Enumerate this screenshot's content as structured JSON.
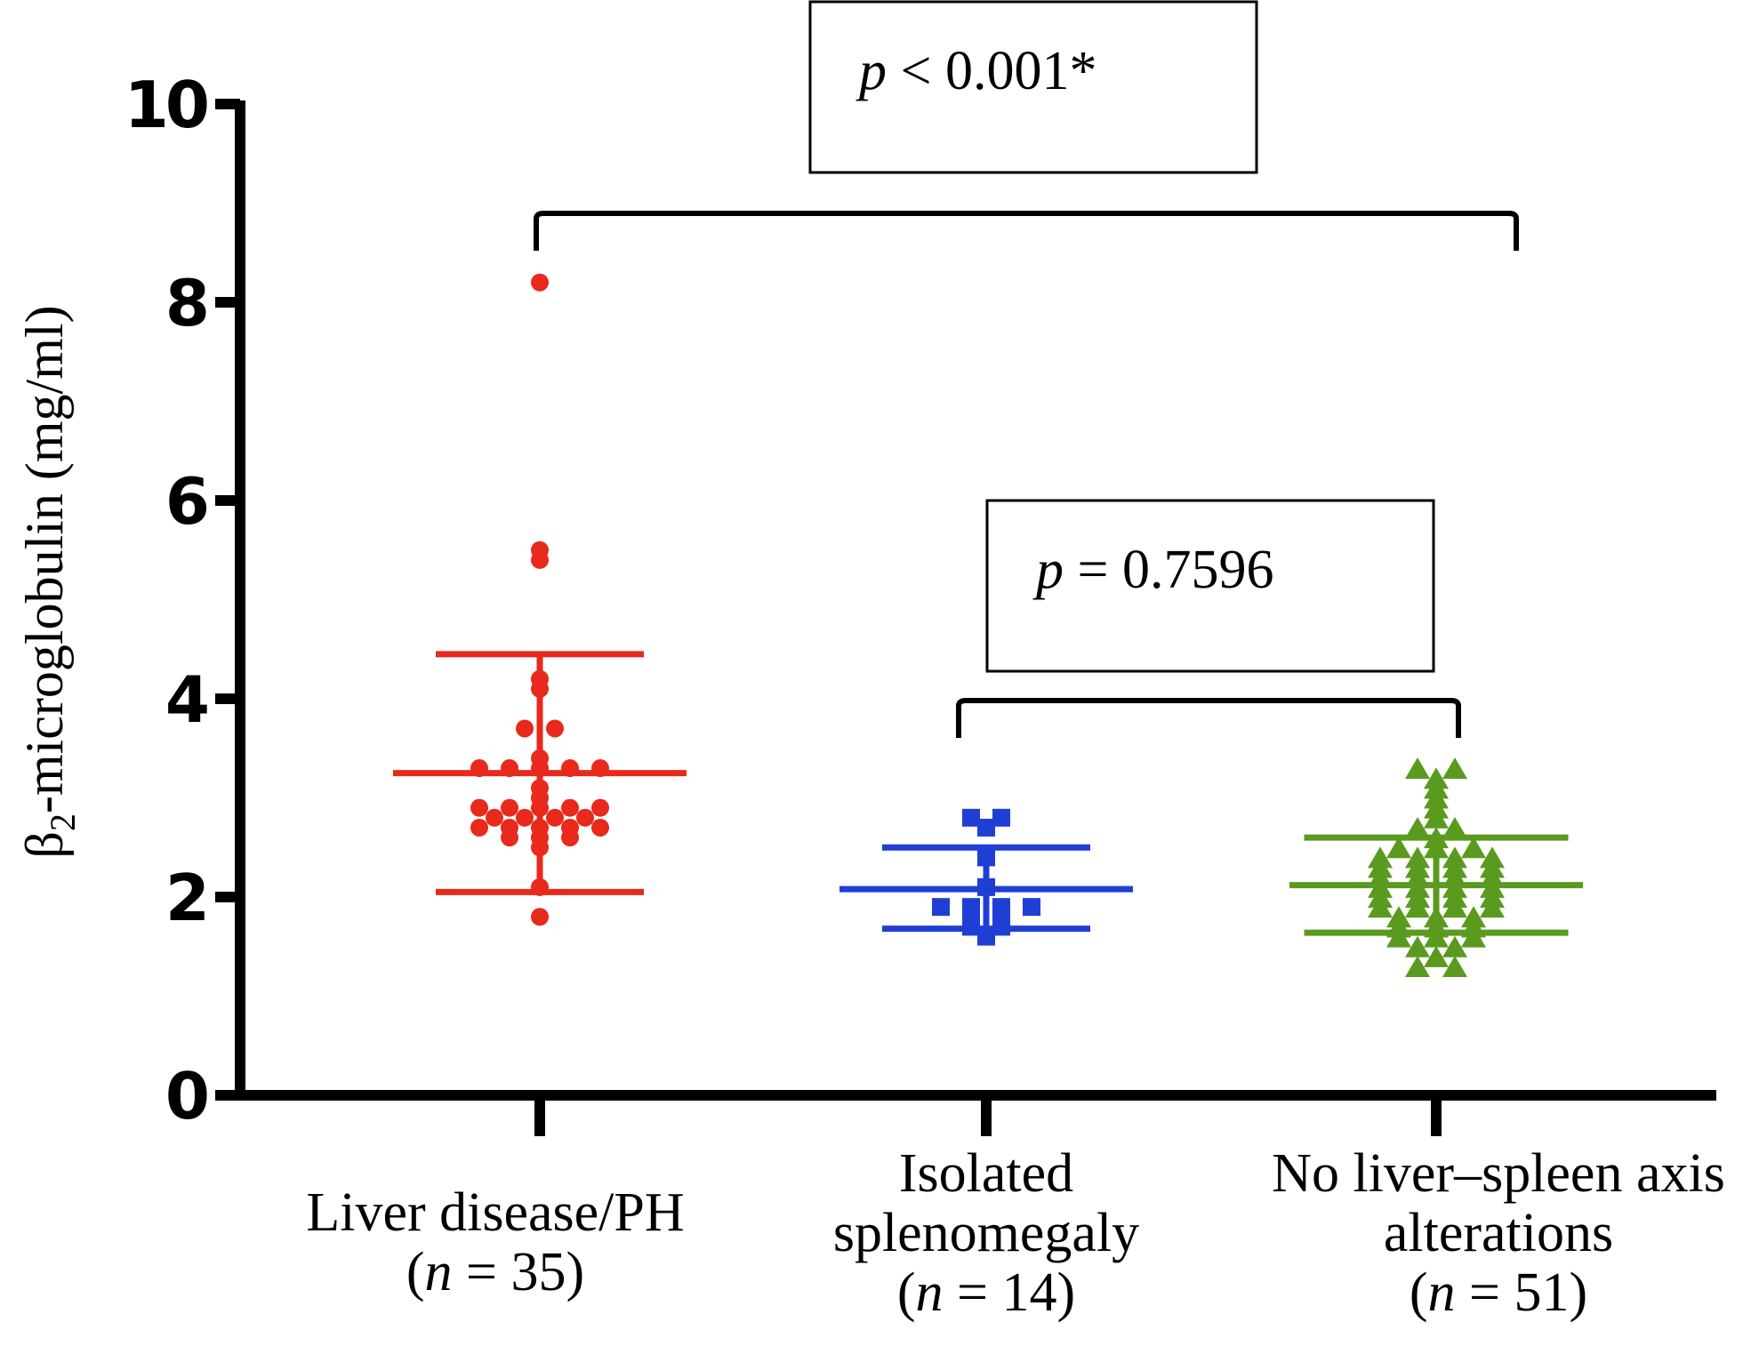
{
  "chart_data": {
    "type": "scatter",
    "ylabel": "β2-microglobulin (mg/ml)",
    "ylabel_parts": {
      "symbol": "β",
      "subscript": "2",
      "rest": "-microglobulin (mg/ml)"
    },
    "ylim": [
      0,
      10
    ],
    "yticks": [
      "0",
      "2",
      "4",
      "6",
      "8",
      "10"
    ],
    "categories": [
      {
        "lines": [
          "Liver disease/PH"
        ],
        "n_prefix": "(",
        "n_var": "n",
        "n_rest": " = 35)",
        "color": "#e8291c",
        "marker": "circle"
      },
      {
        "lines": [
          "Isolated",
          "splenomegaly"
        ],
        "n_prefix": "(",
        "n_var": "n",
        "n_rest": " = 14)",
        "color": "#1f3fd4",
        "marker": "square"
      },
      {
        "lines": [
          "No liver–spleen axis",
          "alterations"
        ],
        "n_prefix": "(",
        "n_var": "n",
        "n_rest": " = 51)",
        "color": "#5a9a1e",
        "marker": "triangle"
      }
    ],
    "series": [
      {
        "name": "Liver disease/PH",
        "mean": 3.25,
        "sd_upper": 4.45,
        "sd_lower": 2.05,
        "points": [
          8.2,
          5.5,
          5.4,
          4.2,
          4.1,
          3.7,
          3.7,
          3.4,
          3.3,
          3.3,
          3.3,
          3.3,
          3.3,
          3.1,
          3.0,
          2.9,
          2.9,
          2.9,
          2.9,
          2.9,
          2.8,
          2.8,
          2.8,
          2.8,
          2.7,
          2.7,
          2.7,
          2.7,
          2.7,
          2.6,
          2.6,
          2.6,
          2.5,
          2.1,
          1.8
        ]
      },
      {
        "name": "Isolated splenomegaly",
        "mean": 2.08,
        "sd_upper": 2.5,
        "sd_lower": 1.68,
        "points": [
          2.8,
          2.8,
          2.7,
          2.4,
          2.1,
          1.9,
          1.9,
          1.9,
          1.9,
          1.8,
          1.8,
          1.7,
          1.7,
          1.6
        ]
      },
      {
        "name": "No liver–spleen axis alterations",
        "mean": 2.12,
        "sd_upper": 2.6,
        "sd_lower": 1.64,
        "points": [
          3.3,
          3.3,
          3.2,
          3.1,
          3.0,
          2.9,
          2.8,
          2.7,
          2.7,
          2.6,
          2.5,
          2.5,
          2.5,
          2.4,
          2.4,
          2.4,
          2.4,
          2.3,
          2.3,
          2.3,
          2.3,
          2.2,
          2.2,
          2.2,
          2.2,
          2.1,
          2.1,
          2.1,
          2.1,
          2.0,
          2.0,
          2.0,
          2.0,
          1.9,
          1.9,
          1.9,
          1.9,
          1.8,
          1.8,
          1.8,
          1.7,
          1.7,
          1.7,
          1.6,
          1.6,
          1.6,
          1.5,
          1.5,
          1.4,
          1.3,
          1.3
        ]
      }
    ],
    "comparisons": [
      {
        "from": 0,
        "to": 2,
        "p_var": "p",
        "p_rest": " < 0.001*"
      },
      {
        "from": 1,
        "to": 2,
        "p_var": "p",
        "p_rest": " = 0.7596"
      }
    ]
  }
}
